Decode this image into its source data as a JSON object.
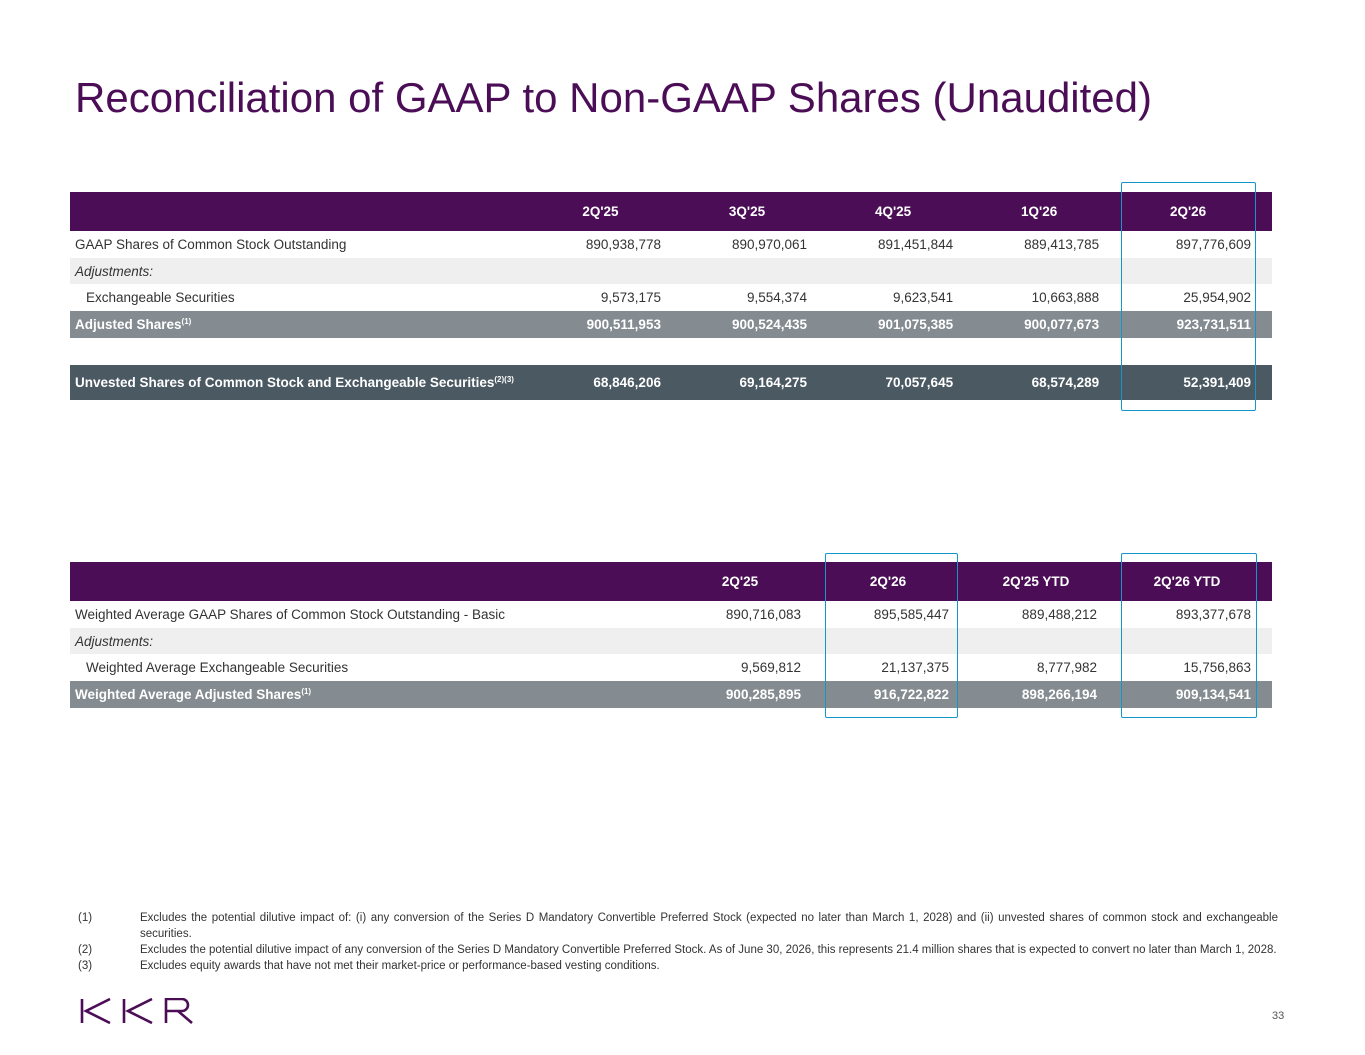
{
  "title": "Reconciliation of GAAP to Non-GAAP Shares (Unaudited)",
  "table1": {
    "headers": [
      "2Q'25",
      "3Q'25",
      "4Q'25",
      "1Q'26",
      "2Q'26"
    ],
    "gaap": {
      "label": "GAAP Shares of Common Stock Outstanding",
      "values": [
        "890,938,778",
        "890,970,061",
        "891,451,844",
        "889,413,785",
        "897,776,609"
      ]
    },
    "adjustments_label": "Adjustments:",
    "exch": {
      "label": "Exchangeable Securities",
      "values": [
        "9,573,175",
        "9,554,374",
        "9,623,541",
        "10,663,888",
        "25,954,902"
      ]
    },
    "adjusted": {
      "label": "Adjusted Shares",
      "sup": "(1)",
      "values": [
        "900,511,953",
        "900,524,435",
        "901,075,385",
        "900,077,673",
        "923,731,511"
      ]
    },
    "unvested": {
      "label": "Unvested Shares of Common Stock and Exchangeable Securities",
      "sup": "(2)(3)",
      "values": [
        "68,846,206",
        "69,164,275",
        "70,057,645",
        "68,574,289",
        "52,391,409"
      ]
    }
  },
  "table2": {
    "headers": [
      "2Q'25",
      "2Q'26",
      "2Q'25 YTD",
      "2Q'26 YTD"
    ],
    "wa_gaap": {
      "label": "Weighted Average GAAP Shares of Common Stock Outstanding - Basic",
      "values": [
        "890,716,083",
        "895,585,447",
        "889,488,212",
        "893,377,678"
      ]
    },
    "adjustments_label": "Adjustments:",
    "wa_exch": {
      "label": "Weighted Average Exchangeable Securities",
      "values": [
        "9,569,812",
        "21,137,375",
        "8,777,982",
        "15,756,863"
      ]
    },
    "wa_adjusted": {
      "label": "Weighted Average Adjusted Shares",
      "sup": "(1)",
      "values": [
        "900,285,895",
        "916,722,822",
        "898,266,194",
        "909,134,541"
      ]
    }
  },
  "footnotes": [
    {
      "num": "(1)",
      "text": "Excludes the potential dilutive impact of: (i) any conversion of the Series D Mandatory Convertible Preferred Stock (expected no later than March 1, 2028) and (ii) unvested shares of common stock and exchangeable securities."
    },
    {
      "num": "(2)",
      "text": "Excludes the potential dilutive impact of any conversion of the Series D Mandatory Convertible Preferred Stock. As of June 30, 2026, this represents 21.4 million shares that is expected to convert no later than March 1, 2028."
    },
    {
      "num": "(3)",
      "text": "Excludes equity awards that have not met their market-price or performance-based vesting conditions."
    }
  ],
  "logo": "KKR",
  "page_number": "33",
  "colors": {
    "brand_purple": "#4b0e56",
    "highlight_blue": "#1496c8",
    "total_gray": "#858c91",
    "dark_slate": "#4b5963"
  }
}
